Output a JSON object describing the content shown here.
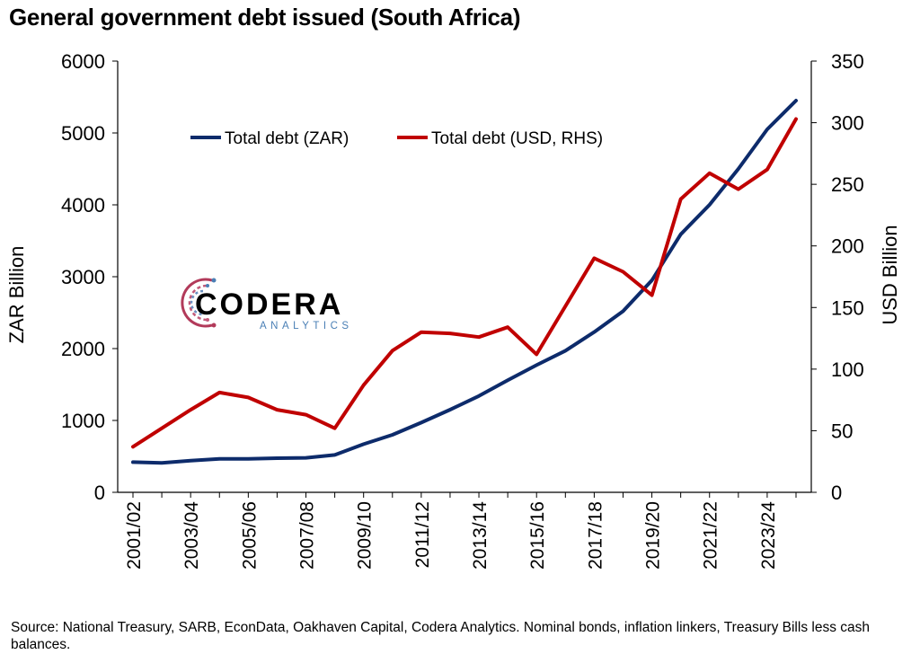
{
  "title": "General government debt issued (South Africa)",
  "source": "Source: National Treasury, SARB, EconData, Oakhaven Capital, Codera Analytics. Nominal bonds, inflation linkers, Treasury Bills less cash balances.",
  "logo": {
    "name": "CODERA",
    "sub": "ANALYTICS"
  },
  "colors": {
    "zar": "#0d2b6b",
    "usd": "#c00000"
  },
  "chart_data": {
    "type": "line",
    "title": "General government debt issued (South Africa)",
    "x": [
      "2001/02",
      "2002/03",
      "2003/04",
      "2004/05",
      "2005/06",
      "2006/07",
      "2007/08",
      "2008/09",
      "2009/10",
      "2010/11",
      "2011/12",
      "2012/13",
      "2013/14",
      "2014/15",
      "2015/16",
      "2016/17",
      "2017/18",
      "2018/19",
      "2019/20",
      "2020/21",
      "2021/22",
      "2022/23",
      "2023/24",
      "2024/25"
    ],
    "x_tick_labels": [
      "2001/02",
      "2003/04",
      "2005/06",
      "2007/08",
      "2009/10",
      "2011/12",
      "2013/14",
      "2015/16",
      "2017/18",
      "2019/20",
      "2021/22",
      "2023/24"
    ],
    "ylabel": "ZAR Billion",
    "y2label": "USD Billion",
    "ylim": [
      0,
      6000
    ],
    "y2lim": [
      0,
      350
    ],
    "yticks": [
      0,
      1000,
      2000,
      3000,
      4000,
      5000,
      6000
    ],
    "y2ticks": [
      0,
      50,
      100,
      150,
      200,
      250,
      300,
      350
    ],
    "legend_position": "top-left",
    "grid": false,
    "series": [
      {
        "name": "Total debt (ZAR)",
        "axis": "left",
        "color": "#0d2b6b",
        "values": [
          420,
          410,
          440,
          465,
          465,
          475,
          480,
          520,
          670,
          800,
          970,
          1150,
          1340,
          1560,
          1770,
          1970,
          2230,
          2520,
          2950,
          3590,
          4000,
          4500,
          5050,
          5450
        ]
      },
      {
        "name": "Total debt (USD, RHS)",
        "axis": "right",
        "color": "#c00000",
        "values": [
          37,
          52,
          67,
          81,
          77,
          67,
          63,
          52,
          87,
          115,
          130,
          129,
          126,
          134,
          112,
          151,
          190,
          179,
          160,
          238,
          259,
          246,
          262,
          303
        ]
      }
    ]
  }
}
